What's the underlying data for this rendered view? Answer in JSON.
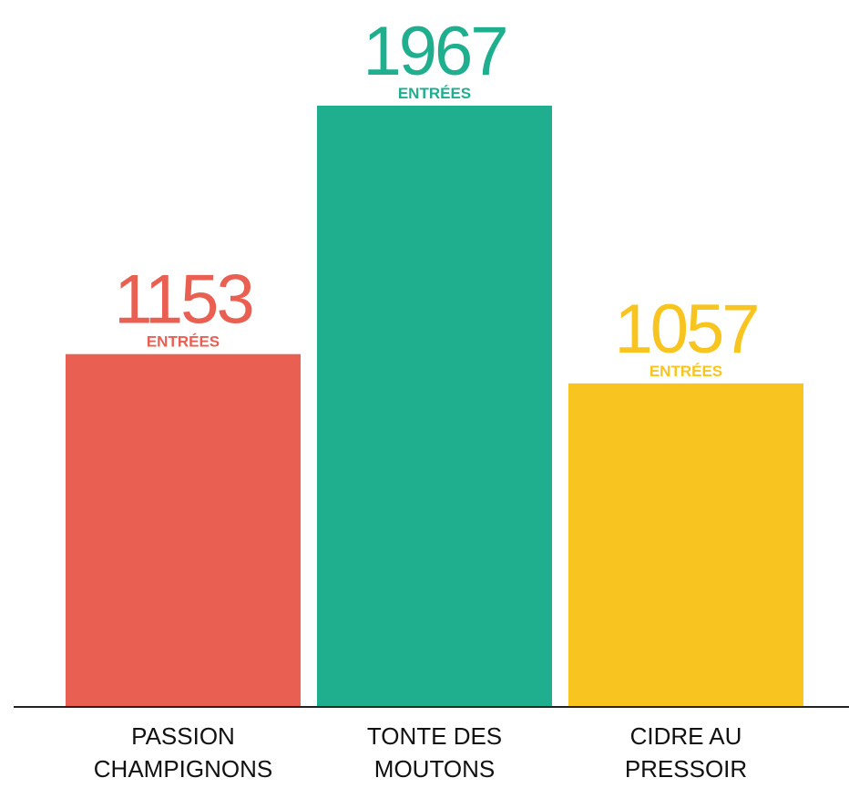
{
  "chart_data": {
    "type": "bar",
    "categories": [
      "PASSION CHAMPIGNONS",
      "TONTE DES MOUTONS",
      "CIDRE AU PRESSOIR"
    ],
    "values": [
      1153,
      1967,
      1057
    ],
    "unit_label": "ENTRÉES",
    "colors": [
      "#e95f51",
      "#1fae8e",
      "#f8c41f"
    ]
  }
}
